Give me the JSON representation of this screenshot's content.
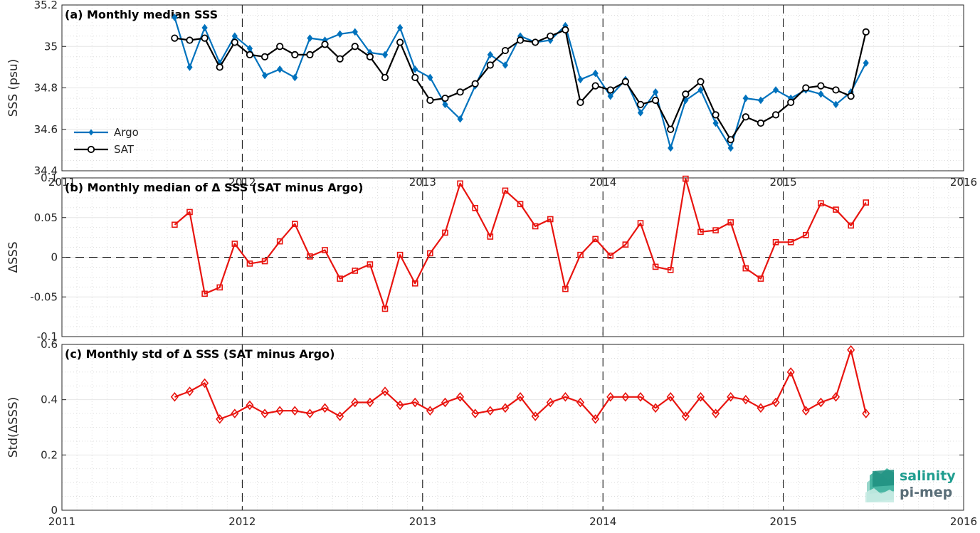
{
  "colors": {
    "argo": "#0072BD",
    "sat": "#000000",
    "delta": "#E8140F",
    "grid_minor": "#d8d8d8",
    "grid_major": "#e6e6e6",
    "axis": "#262626",
    "logo_top": "#1f9d8f",
    "logo_bottom": "#5a6e78"
  },
  "logo": {
    "line1": "salinity",
    "line2": "pi-mep",
    "icon": "salinity-waves-icon"
  },
  "chart_data": [
    {
      "id": "a",
      "type": "line",
      "title": "(a) Monthly median SSS",
      "ylabel": "SSS (psu)",
      "xlabel": "",
      "xlim": [
        2011,
        2016
      ],
      "ylim": [
        34.4,
        35.2
      ],
      "xticks": [
        2011,
        2012,
        2013,
        2014,
        2015,
        2016
      ],
      "xtick_labels": [
        "2011",
        "2012",
        "2013",
        "2014",
        "2015",
        "2016"
      ],
      "yticks": [
        34.4,
        34.6,
        34.8,
        35,
        35.2
      ],
      "ytick_labels": [
        "34.4",
        "34.6",
        "34.8",
        "35",
        "35.2"
      ],
      "grid": true,
      "legend": {
        "placement": "bottom-left",
        "entries": [
          "Argo",
          "SAT"
        ]
      },
      "series": [
        {
          "name": "Argo",
          "marker": "diamond-filled",
          "x_start": 2011.625,
          "x_step": 0.0833333,
          "values": [
            35.14,
            34.9,
            35.09,
            34.92,
            35.05,
            34.99,
            34.86,
            34.89,
            34.85,
            35.04,
            35.03,
            35.06,
            35.07,
            34.97,
            34.96,
            35.09,
            34.89,
            34.85,
            34.72,
            34.65,
            34.81,
            34.96,
            34.91,
            35.05,
            35.02,
            35.03,
            35.1,
            34.84,
            34.87,
            34.76,
            34.84,
            34.68,
            34.78,
            34.51,
            34.74,
            34.79,
            34.63,
            34.51,
            34.75,
            34.74,
            34.79,
            34.75,
            34.79,
            34.77,
            34.72,
            34.78,
            34.92
          ]
        },
        {
          "name": "SAT",
          "marker": "circle-open",
          "x_start": 2011.625,
          "x_step": 0.0833333,
          "values": [
            35.04,
            35.03,
            35.04,
            34.9,
            35.02,
            34.96,
            34.95,
            35.0,
            34.96,
            34.96,
            35.01,
            34.94,
            35.0,
            34.95,
            34.85,
            35.02,
            34.85,
            34.74,
            34.75,
            34.78,
            34.82,
            34.91,
            34.98,
            35.03,
            35.02,
            35.05,
            35.08,
            34.73,
            34.81,
            34.79,
            34.83,
            34.72,
            34.74,
            34.6,
            34.77,
            34.83,
            34.67,
            34.55,
            34.66,
            34.63,
            34.67,
            34.73,
            34.8,
            34.81,
            34.79,
            34.76,
            35.07
          ]
        }
      ]
    },
    {
      "id": "b",
      "type": "line",
      "title": "(b) Monthly median of Δ SSS (SAT minus Argo)",
      "ylabel": "ΔSSS",
      "xlabel": "",
      "xlim": [
        2011,
        2016
      ],
      "ylim": [
        -0.1,
        0.1
      ],
      "xticks": [
        2011,
        2012,
        2013,
        2014,
        2015,
        2016
      ],
      "yticks": [
        -0.1,
        -0.05,
        0,
        0.05,
        0.1
      ],
      "ytick_labels": [
        "-0.1",
        "-0.05",
        "0",
        "0.05",
        "0.1"
      ],
      "grid": true,
      "zero_line": true,
      "series": [
        {
          "name": "",
          "marker": "square-open",
          "x_start": 2011.625,
          "x_step": 0.0833333,
          "values": [
            0.041,
            0.057,
            -0.046,
            -0.038,
            0.017,
            -0.008,
            -0.005,
            0.02,
            0.042,
            0.001,
            0.009,
            -0.027,
            -0.017,
            -0.009,
            -0.065,
            0.003,
            -0.033,
            0.005,
            0.031,
            0.093,
            0.062,
            0.026,
            0.084,
            0.067,
            0.039,
            0.048,
            -0.04,
            0.003,
            0.023,
            0.002,
            0.016,
            0.043,
            -0.012,
            -0.016,
            0.099,
            0.032,
            0.034,
            0.044,
            -0.014,
            -0.027,
            0.019,
            0.019,
            0.028,
            0.068,
            0.06,
            0.04,
            0.069
          ]
        }
      ]
    },
    {
      "id": "c",
      "type": "line",
      "title": "(c) Monthly std of Δ SSS (SAT minus Argo)",
      "ylabel": "Std(ΔSSS)",
      "xlabel": "",
      "xlim": [
        2011,
        2016
      ],
      "ylim": [
        0,
        0.6
      ],
      "xticks": [
        2011,
        2012,
        2013,
        2014,
        2015,
        2016
      ],
      "xtick_labels": [
        "2011",
        "2012",
        "2013",
        "2014",
        "2015",
        "2016"
      ],
      "yticks": [
        0,
        0.2,
        0.4,
        0.6
      ],
      "ytick_labels": [
        "0",
        "0.2",
        "0.4",
        "0.6"
      ],
      "grid": true,
      "series": [
        {
          "name": "",
          "marker": "diamond-open",
          "x_start": 2011.625,
          "x_step": 0.0833333,
          "values": [
            0.41,
            0.43,
            0.46,
            0.33,
            0.35,
            0.38,
            0.35,
            0.36,
            0.36,
            0.35,
            0.37,
            0.34,
            0.39,
            0.39,
            0.43,
            0.38,
            0.39,
            0.36,
            0.39,
            0.41,
            0.35,
            0.36,
            0.37,
            0.41,
            0.34,
            0.39,
            0.41,
            0.39,
            0.33,
            0.41,
            0.41,
            0.41,
            0.37,
            0.41,
            0.34,
            0.41,
            0.35,
            0.41,
            0.4,
            0.37,
            0.39,
            0.5,
            0.36,
            0.39,
            0.41,
            0.58,
            0.35
          ]
        }
      ]
    }
  ]
}
